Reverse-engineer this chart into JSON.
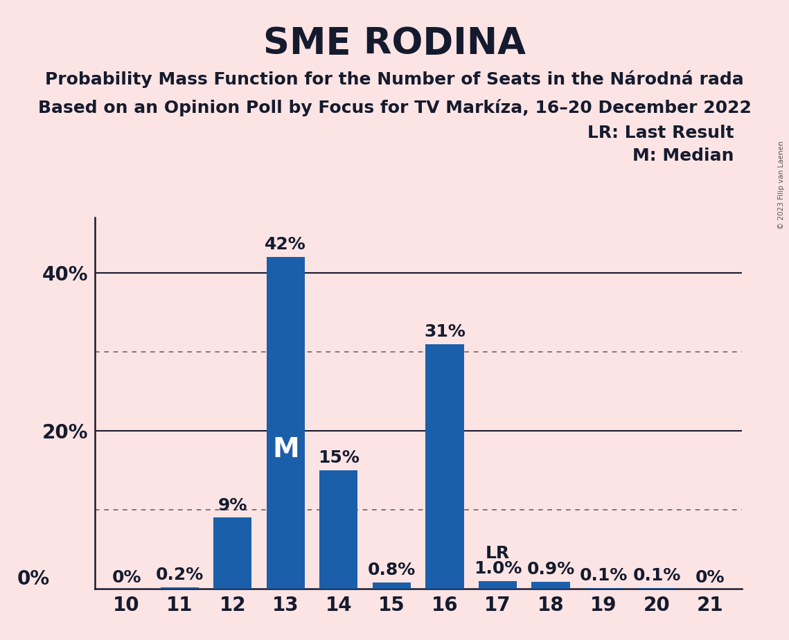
{
  "title": "SME RODINA",
  "subtitle1": "Probability Mass Function for the Number of Seats in the Národná rada",
  "subtitle2": "Based on an Opinion Poll by Focus for TV Markíza, 16–20 December 2022",
  "copyright_text": "© 2023 Filip van Laenen",
  "categories": [
    10,
    11,
    12,
    13,
    14,
    15,
    16,
    17,
    18,
    19,
    20,
    21
  ],
  "values": [
    0.0,
    0.2,
    9.0,
    42.0,
    15.0,
    0.8,
    31.0,
    1.0,
    0.9,
    0.1,
    0.1,
    0.0
  ],
  "labels": [
    "0%",
    "0.2%",
    "9%",
    "42%",
    "15%",
    "0.8%",
    "31%",
    "1.0%",
    "0.9%",
    "0.1%",
    "0.1%",
    "0%"
  ],
  "bar_color": "#1b5faa",
  "background_color": "#fce4e4",
  "title_fontsize": 38,
  "subtitle_fontsize": 18,
  "tick_fontsize": 20,
  "bar_label_fontsize": 18,
  "median_seat": 13,
  "lr_seat": 17,
  "legend_text1": "LR: Last Result",
  "legend_text2": "M: Median",
  "ytick_labels_shown": [
    "0%",
    "20%",
    "40%"
  ],
  "ytick_values_shown": [
    0,
    20,
    40
  ],
  "solid_lines": [
    20,
    40
  ],
  "dotted_lines": [
    10,
    30
  ],
  "ylim": [
    0,
    47
  ],
  "text_color": "#151b2e",
  "dotted_color": "#666666",
  "solid_color": "#1a1a2e"
}
